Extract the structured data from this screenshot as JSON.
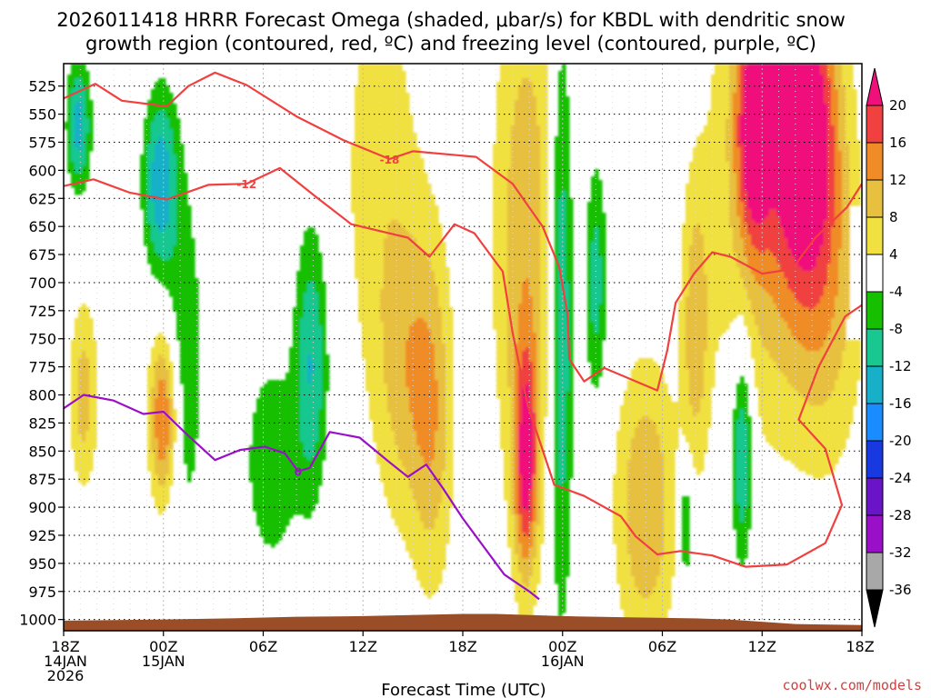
{
  "chart_data": {
    "type": "heatmap",
    "title_line1": "2026011418 HRRR Forecast Omega (shaded, μbar/s) for KBDL with dendritic snow",
    "title_line2": "growth region (contoured, red, ºC) and freezing level (contoured, purple, ºC)",
    "xlabel": "Forecast Time (UTC)",
    "credit": "coolwx.com/models",
    "x_range_hours": [
      0,
      48
    ],
    "x_ticks": [
      {
        "h": 0,
        "l1": "18Z",
        "l2": "14JAN",
        "l3": "2026"
      },
      {
        "h": 6,
        "l1": "00Z",
        "l2": "15JAN",
        "l3": ""
      },
      {
        "h": 12,
        "l1": "06Z",
        "l2": "",
        "l3": ""
      },
      {
        "h": 18,
        "l1": "12Z",
        "l2": "",
        "l3": ""
      },
      {
        "h": 24,
        "l1": "18Z",
        "l2": "",
        "l3": ""
      },
      {
        "h": 30,
        "l1": "00Z",
        "l2": "16JAN",
        "l3": ""
      },
      {
        "h": 36,
        "l1": "06Z",
        "l2": "",
        "l3": ""
      },
      {
        "h": 42,
        "l1": "12Z",
        "l2": "",
        "l3": ""
      },
      {
        "h": 48,
        "l1": "18Z",
        "l2": "",
        "l3": ""
      }
    ],
    "y_range_hpa": [
      505,
      1010
    ],
    "y_ticks": [
      525,
      550,
      575,
      600,
      625,
      650,
      675,
      700,
      725,
      750,
      775,
      800,
      825,
      850,
      875,
      900,
      925,
      950,
      975,
      1000
    ],
    "colorbar": {
      "levels": [
        -36,
        -32,
        -28,
        -24,
        -20,
        -16,
        -12,
        -8,
        -4,
        4,
        8,
        12,
        16,
        20
      ],
      "colors": [
        "#000000",
        "#a8a8a8",
        "#9a10c8",
        "#6a14c8",
        "#1838e0",
        "#1a8cff",
        "#18b0c8",
        "#18c890",
        "#16c000",
        "#ffffff",
        "#f0e040",
        "#e8c040",
        "#f08c28",
        "#f04040",
        "#f0107c"
      ]
    },
    "omega_blobs": [
      {
        "h": 0.9,
        "p": 560,
        "sh": 0.5,
        "sp": 40,
        "v": -14
      },
      {
        "h": 1.2,
        "p": 800,
        "sh": 0.6,
        "sp": 60,
        "v": 10
      },
      {
        "h": 5.8,
        "p": 610,
        "sh": 0.7,
        "sp": 55,
        "v": -15
      },
      {
        "h": 6.0,
        "p": 820,
        "sh": 0.6,
        "sp": 55,
        "v": 18
      },
      {
        "h": 7.2,
        "p": 770,
        "sh": 0.9,
        "sp": 120,
        "v": -7
      },
      {
        "h": 12.5,
        "p": 860,
        "sh": 1.2,
        "sp": 70,
        "v": -7
      },
      {
        "h": 14.9,
        "p": 770,
        "sh": 0.7,
        "sp": 85,
        "v": -12
      },
      {
        "h": 19.0,
        "p": 600,
        "sh": 1.8,
        "sp": 160,
        "v": 6
      },
      {
        "h": 20.5,
        "p": 780,
        "sh": 1.2,
        "sp": 100,
        "v": 8
      },
      {
        "h": 22.2,
        "p": 820,
        "sh": 0.9,
        "sp": 110,
        "v": 10
      },
      {
        "h": 27.8,
        "p": 660,
        "sh": 1.4,
        "sp": 180,
        "v": 11
      },
      {
        "h": 27.8,
        "p": 860,
        "sh": 0.5,
        "sp": 70,
        "v": 19
      },
      {
        "h": 29.9,
        "p": 730,
        "sh": 0.5,
        "sp": 180,
        "v": -14
      },
      {
        "h": 32.0,
        "p": 700,
        "sh": 0.45,
        "sp": 75,
        "v": -10
      },
      {
        "h": 35.0,
        "p": 900,
        "sh": 1.3,
        "sp": 90,
        "v": 12
      },
      {
        "h": 38.0,
        "p": 740,
        "sh": 0.6,
        "sp": 90,
        "v": 10
      },
      {
        "h": 37.4,
        "p": 915,
        "sh": 0.35,
        "sp": 40,
        "v": -10
      },
      {
        "h": 40.8,
        "p": 850,
        "sh": 0.45,
        "sp": 70,
        "v": -14
      },
      {
        "h": 42.2,
        "p": 590,
        "sh": 2.3,
        "sp": 170,
        "v": 11
      },
      {
        "h": 44.6,
        "p": 560,
        "sh": 1.4,
        "sp": 100,
        "v": 22
      },
      {
        "h": 41.5,
        "p": 560,
        "sh": 0.7,
        "sp": 70,
        "v": 18
      },
      {
        "h": 46.0,
        "p": 720,
        "sh": 1.6,
        "sp": 110,
        "v": 8
      }
    ],
    "contours": [
      {
        "name": "-18",
        "color": "#f04040",
        "label": "-18",
        "label_at": [
          19.6,
          590
        ],
        "points": [
          [
            0,
            536
          ],
          [
            1.9,
            523
          ],
          [
            3.5,
            538
          ],
          [
            6.2,
            543
          ],
          [
            7.5,
            525
          ],
          [
            9.1,
            513
          ],
          [
            11.0,
            524
          ],
          [
            14.0,
            552
          ],
          [
            16.8,
            573
          ],
          [
            19.6,
            590
          ],
          [
            21.0,
            583
          ],
          [
            24.8,
            588
          ],
          [
            27.0,
            612
          ],
          [
            28.8,
            650
          ],
          [
            29.8,
            686
          ],
          [
            30.3,
            728
          ],
          [
            30.4,
            768
          ],
          [
            31.3,
            788
          ],
          [
            32.5,
            776
          ],
          [
            35.7,
            796
          ],
          [
            36.3,
            760
          ],
          [
            36.8,
            718
          ],
          [
            37.9,
            692
          ],
          [
            39.0,
            673
          ],
          [
            40.1,
            677
          ],
          [
            42.0,
            692
          ],
          [
            43.8,
            688
          ],
          [
            45.2,
            660
          ],
          [
            47.1,
            633
          ],
          [
            48.0,
            612
          ]
        ]
      },
      {
        "name": "-12",
        "color": "#f04040",
        "label": "-12",
        "label_at": [
          11.0,
          612
        ],
        "points": [
          [
            0,
            614
          ],
          [
            1.8,
            608
          ],
          [
            4.0,
            620
          ],
          [
            6.2,
            626
          ],
          [
            8.7,
            613
          ],
          [
            11.0,
            612
          ],
          [
            13.0,
            598
          ],
          [
            15.2,
            624
          ],
          [
            17.3,
            648
          ],
          [
            20.7,
            660
          ],
          [
            22.0,
            677
          ],
          [
            23.5,
            648
          ],
          [
            24.7,
            656
          ],
          [
            26.4,
            690
          ],
          [
            27.0,
            745
          ],
          [
            27.9,
            809
          ],
          [
            29.5,
            880
          ],
          [
            31.3,
            890
          ],
          [
            33.5,
            908
          ],
          [
            34.4,
            926
          ],
          [
            35.7,
            942
          ],
          [
            37.1,
            939
          ],
          [
            39.0,
            943
          ],
          [
            41.0,
            953
          ],
          [
            43.5,
            951
          ],
          [
            45.8,
            932
          ],
          [
            46.8,
            898
          ],
          [
            45.8,
            848
          ],
          [
            44.2,
            822
          ],
          [
            45.4,
            775
          ],
          [
            47.0,
            730
          ],
          [
            48.0,
            720
          ]
        ]
      },
      {
        "name": "0",
        "color": "#9a10c8",
        "label": "0",
        "label_at": [
          14.1,
          868
        ],
        "points": [
          [
            0,
            812
          ],
          [
            1.2,
            800
          ],
          [
            3.0,
            805
          ],
          [
            4.8,
            817
          ],
          [
            6.0,
            815
          ],
          [
            7.4,
            835
          ],
          [
            9.1,
            858
          ],
          [
            10.6,
            849
          ],
          [
            12.1,
            846
          ],
          [
            13.3,
            852
          ],
          [
            14.1,
            868
          ],
          [
            14.8,
            865
          ],
          [
            16.0,
            833
          ],
          [
            17.8,
            838
          ],
          [
            19.6,
            860
          ],
          [
            20.7,
            873
          ],
          [
            21.8,
            862
          ],
          [
            22.8,
            883
          ],
          [
            24.0,
            910
          ],
          [
            25.0,
            930
          ],
          [
            26.5,
            960
          ],
          [
            28.0,
            975
          ],
          [
            28.6,
            982
          ]
        ]
      }
    ]
  }
}
